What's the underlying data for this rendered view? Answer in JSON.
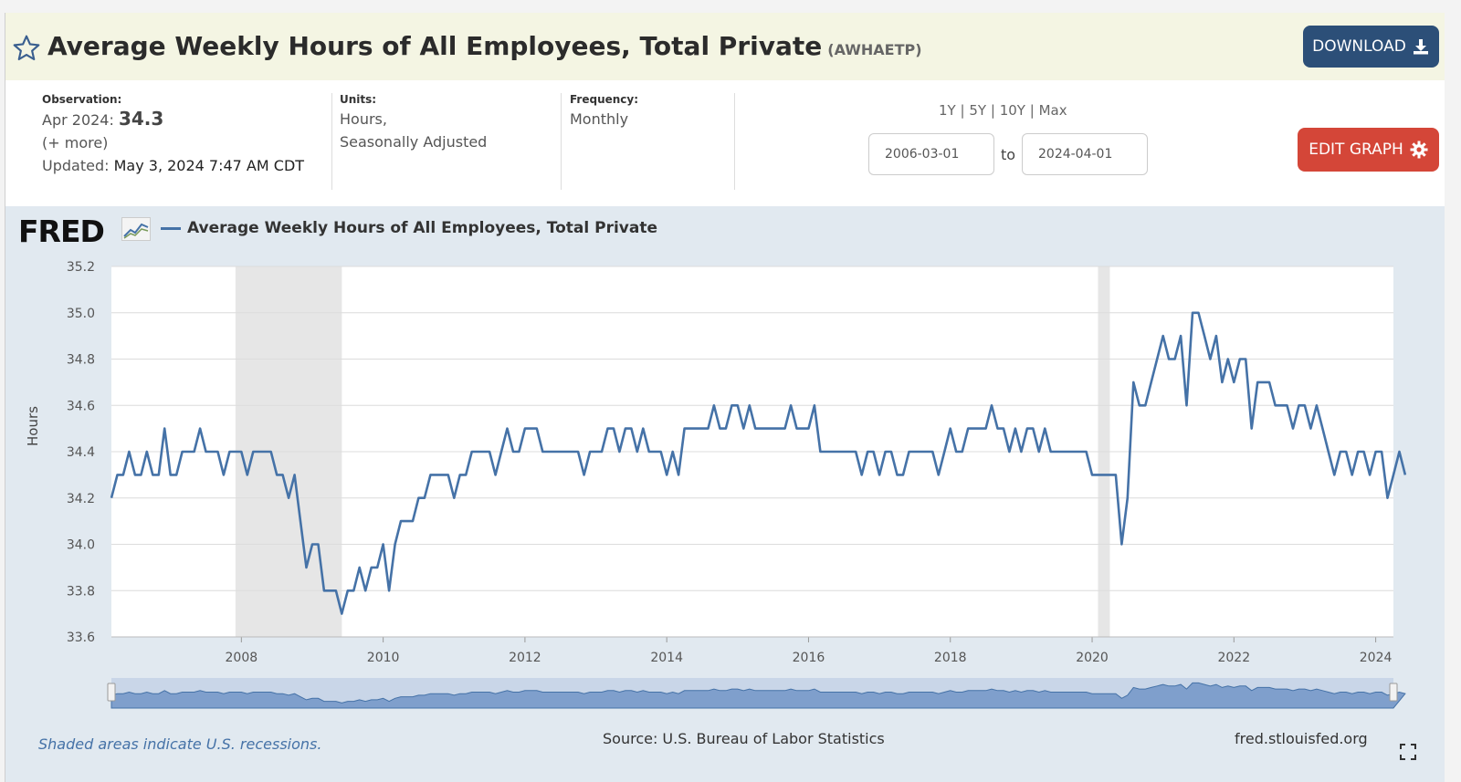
{
  "header": {
    "title": "Average Weekly Hours of All Employees, Total Private",
    "series_id": "(AWHAETP)",
    "download_label": "DOWNLOAD"
  },
  "info": {
    "observation_label": "Observation:",
    "observation_date": "Apr 2024:",
    "observation_value": "34.3",
    "more_link": "(+ more)",
    "updated_label": "Updated:",
    "updated_value": "May 3, 2024 7:47 AM CDT",
    "units_label": "Units:",
    "units_line1": "Hours,",
    "units_line2": "Seasonally Adjusted",
    "frequency_label": "Frequency:",
    "frequency_value": "Monthly",
    "range_1y": "1Y",
    "range_5y": "5Y",
    "range_10y": "10Y",
    "range_max": "Max",
    "range_sep": "|",
    "start_date": "2006-03-01",
    "to_label": "to",
    "end_date": "2024-04-01",
    "edit_label": "EDIT GRAPH"
  },
  "logo_text": "FRED",
  "footer": {
    "recession_note": "Shaded areas indicate U.S. recessions.",
    "source": "Source: U.S. Bureau of Labor Statistics",
    "site": "fred.stlouisfed.org"
  },
  "colors": {
    "series": "#4572a7",
    "download_bg": "#2c4f78",
    "edit_bg": "#d44638",
    "title_bg": "#f4f5e3",
    "chart_bg": "#e1e9f0",
    "recession": "#e6e6e6"
  },
  "chart_data": {
    "type": "line",
    "legend": "Average Weekly Hours of All Employees, Total Private",
    "ylabel": "Hours",
    "ylim": [
      33.6,
      35.2
    ],
    "yticks": [
      "33.6",
      "33.8",
      "34.0",
      "34.2",
      "34.4",
      "34.6",
      "34.8",
      "35.0",
      "35.2"
    ],
    "xticks": [
      "2008",
      "2010",
      "2012",
      "2014",
      "2016",
      "2018",
      "2020",
      "2022",
      "2024"
    ],
    "x_start": "2006-03",
    "x_end": "2024-04",
    "recessions": [
      [
        "2007-12",
        "2009-06"
      ],
      [
        "2020-02",
        "2020-04"
      ]
    ],
    "grid": true,
    "series": [
      {
        "name": "AWHAETP",
        "values": [
          34.2,
          34.3,
          34.3,
          34.4,
          34.3,
          34.3,
          34.4,
          34.3,
          34.3,
          34.5,
          34.3,
          34.3,
          34.4,
          34.4,
          34.4,
          34.5,
          34.4,
          34.4,
          34.4,
          34.3,
          34.4,
          34.4,
          34.4,
          34.3,
          34.4,
          34.4,
          34.4,
          34.4,
          34.3,
          34.3,
          34.2,
          34.3,
          34.1,
          33.9,
          34.0,
          34.0,
          33.8,
          33.8,
          33.8,
          33.7,
          33.8,
          33.8,
          33.9,
          33.8,
          33.9,
          33.9,
          34.0,
          33.8,
          34.0,
          34.1,
          34.1,
          34.1,
          34.2,
          34.2,
          34.3,
          34.3,
          34.3,
          34.3,
          34.2,
          34.3,
          34.3,
          34.4,
          34.4,
          34.4,
          34.4,
          34.3,
          34.4,
          34.5,
          34.4,
          34.4,
          34.5,
          34.5,
          34.5,
          34.4,
          34.4,
          34.4,
          34.4,
          34.4,
          34.4,
          34.4,
          34.3,
          34.4,
          34.4,
          34.4,
          34.5,
          34.5,
          34.4,
          34.5,
          34.5,
          34.4,
          34.5,
          34.4,
          34.4,
          34.4,
          34.3,
          34.4,
          34.3,
          34.5,
          34.5,
          34.5,
          34.5,
          34.5,
          34.6,
          34.5,
          34.5,
          34.6,
          34.6,
          34.5,
          34.6,
          34.5,
          34.5,
          34.5,
          34.5,
          34.5,
          34.5,
          34.6,
          34.5,
          34.5,
          34.5,
          34.6,
          34.4,
          34.4,
          34.4,
          34.4,
          34.4,
          34.4,
          34.4,
          34.3,
          34.4,
          34.4,
          34.3,
          34.4,
          34.4,
          34.3,
          34.3,
          34.4,
          34.4,
          34.4,
          34.4,
          34.4,
          34.3,
          34.4,
          34.5,
          34.4,
          34.4,
          34.5,
          34.5,
          34.5,
          34.5,
          34.6,
          34.5,
          34.5,
          34.4,
          34.5,
          34.4,
          34.5,
          34.5,
          34.4,
          34.5,
          34.4,
          34.4,
          34.4,
          34.4,
          34.4,
          34.4,
          34.4,
          34.3,
          34.3,
          34.3,
          34.3,
          34.3,
          34.0,
          34.2,
          34.7,
          34.6,
          34.6,
          34.7,
          34.8,
          34.9,
          34.8,
          34.8,
          34.9,
          34.6,
          35.0,
          35.0,
          34.9,
          34.8,
          34.9,
          34.7,
          34.8,
          34.7,
          34.8,
          34.8,
          34.5,
          34.7,
          34.7,
          34.7,
          34.6,
          34.6,
          34.6,
          34.5,
          34.6,
          34.6,
          34.5,
          34.6,
          34.5,
          34.4,
          34.3,
          34.4,
          34.4,
          34.3,
          34.4,
          34.4,
          34.3,
          34.4,
          34.4,
          34.2,
          34.3,
          34.4,
          34.3
        ]
      }
    ]
  }
}
